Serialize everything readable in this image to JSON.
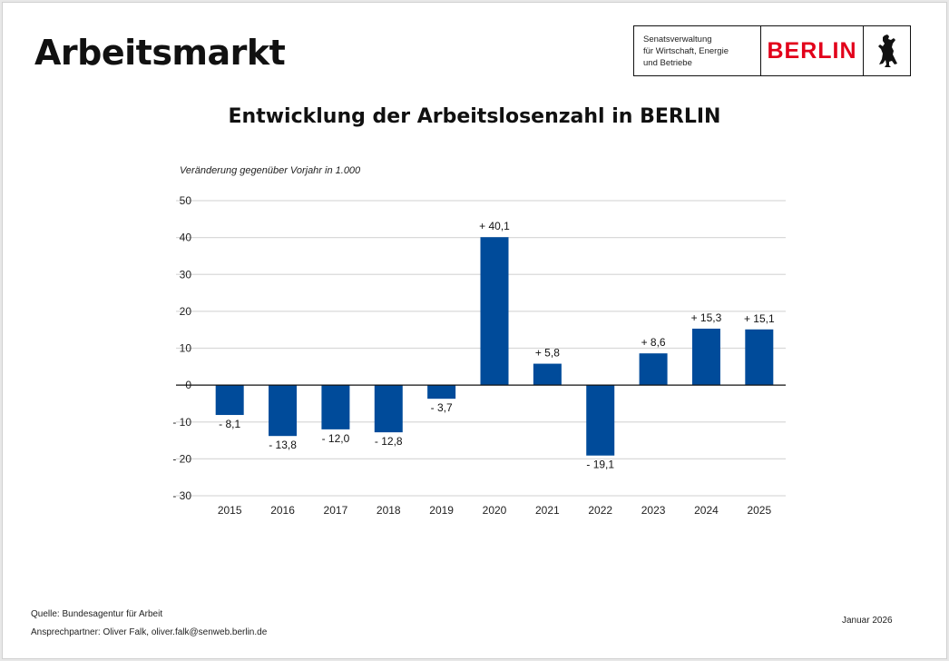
{
  "header": {
    "title": "Arbeitsmarkt",
    "logo": {
      "line1": "Senatsverwaltung",
      "line2": "für Wirtschaft, Energie",
      "line3": "und Betriebe",
      "brand": "BERLIN",
      "icon": "bear-icon",
      "brand_color": "#e2001a"
    }
  },
  "footer": {
    "source": "Quelle: Bundesagentur für Arbeit",
    "contact": "Ansprechpartner: Oliver Falk, oliver.falk@senweb.berlin.de",
    "date": "Januar 2026"
  },
  "chart_data": {
    "type": "bar",
    "title": "Entwicklung der Arbeitslosenzahl in BERLIN",
    "subtitle": "Veränderung gegenüber Vorjahr in 1.000",
    "xlabel": "",
    "ylabel": "",
    "categories": [
      "2015",
      "2016",
      "2017",
      "2018",
      "2019",
      "2020",
      "2021",
      "2022",
      "2023",
      "2024",
      "2025"
    ],
    "values": [
      -8.1,
      -13.8,
      -12.0,
      -12.8,
      -3.7,
      40.1,
      5.8,
      -19.1,
      8.6,
      15.3,
      15.1
    ],
    "data_labels": [
      "- 8,1",
      "- 13,8",
      "- 12,0",
      "- 12,8",
      "- 3,7",
      "+ 40,1",
      "+ 5,8",
      "- 19,1",
      "+ 8,6",
      "+ 15,3",
      "+ 15,1"
    ],
    "ylim": [
      -30,
      50
    ],
    "yticks": [
      50,
      40,
      30,
      20,
      10,
      0,
      -10,
      -20,
      -30
    ],
    "ytick_labels": [
      "50",
      "40",
      "30",
      "20",
      "10",
      "0",
      "- 10",
      "- 20",
      "- 30"
    ],
    "grid": true,
    "legend": "none",
    "bar_color": "#004b9a"
  }
}
